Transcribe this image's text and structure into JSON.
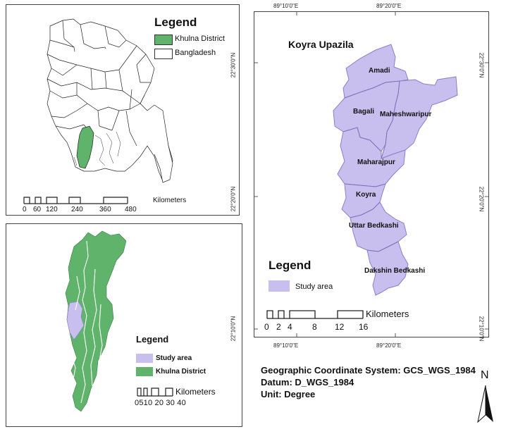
{
  "top_left": {
    "legend_title": "Legend",
    "legend_items": [
      {
        "label": "Khulna District",
        "color": "#5fb36b"
      },
      {
        "label": "Bangladesh",
        "color": "#ffffff"
      }
    ],
    "scale_unit": "Kilometers",
    "scale_ticks": [
      "0",
      "60",
      "120",
      "240",
      "360",
      "480"
    ]
  },
  "bottom_left": {
    "legend_title": "Legend",
    "legend_items": [
      {
        "label": "Study area",
        "color": "#c9bfee"
      },
      {
        "label": "Khulna District",
        "color": "#5fb36b"
      }
    ],
    "scale_unit": "Kilometers",
    "scale_ticks_text": "0510 20 30 40"
  },
  "main_map": {
    "title": "Koyra Upazila",
    "unions": [
      "Amadi",
      "Bagali",
      "Maheshwaripur",
      "Maharajpur",
      "Koyra",
      "Uttar Bedkashi",
      "Dakshin Bedkashi"
    ],
    "fill_color": "#c9bfee",
    "legend_title": "Legend",
    "legend_item": "Study area",
    "scale_unit": "Kilometers",
    "scale_ticks": [
      "0",
      "2",
      "4",
      "8",
      "12",
      "16"
    ],
    "lon_labels": [
      "89°10'0\"E",
      "89°20'0\"E"
    ],
    "lat_labels": [
      "22°30'0\"N",
      "22°20'0\"N",
      "22°10'0\"N"
    ]
  },
  "info": {
    "coordinate_system": "Geographic Coordinate System: GCS_WGS_1984",
    "datum": "Datum: D_WGS_1984",
    "unit": "Unit: Degree"
  },
  "north_arrow_label": "N"
}
